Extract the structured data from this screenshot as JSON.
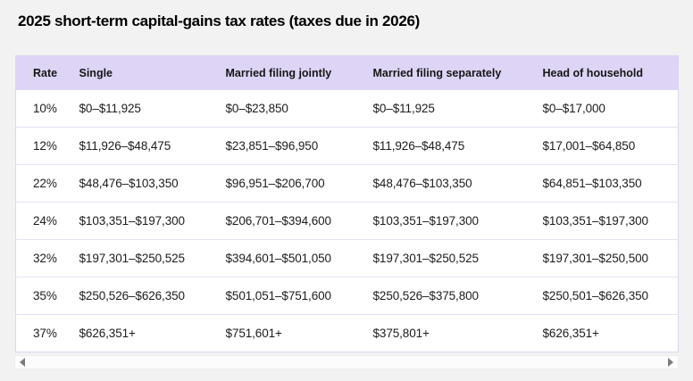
{
  "page": {
    "title": "2025 short-term capital-gains tax rates (taxes due in 2026)"
  },
  "table": {
    "columns": [
      "Rate",
      "Single",
      "Married filing jointly",
      "Married filing separately",
      "Head of household"
    ],
    "rows": [
      [
        "10%",
        "$0–$11,925",
        "$0–$23,850",
        "$0–$11,925",
        "$0–$17,000"
      ],
      [
        "12%",
        "$11,926–$48,475",
        "$23,851–$96,950",
        "$11,926–$48,475",
        "$17,001–$64,850"
      ],
      [
        "22%",
        "$48,476–$103,350",
        "$96,951–$206,700",
        "$48,476–$103,350",
        "$64,851–$103,350"
      ],
      [
        "24%",
        "$103,351–$197,300",
        "$206,701–$394,600",
        "$103,351–$197,300",
        "$103,351–$197,300"
      ],
      [
        "32%",
        "$197,301–$250,525",
        "$394,601–$501,050",
        "$197,301–$250,525",
        "$197,301–$250,500"
      ],
      [
        "35%",
        "$250,526–$626,350",
        "$501,051–$751,600",
        "$250,526–$375,800",
        "$250,501–$626,350"
      ],
      [
        "37%",
        "$626,351+",
        "$751,601+",
        "$375,801+",
        "$626,351+"
      ]
    ]
  },
  "scrollbar": {
    "left_icon": "triangle-left",
    "right_icon": "triangle-right"
  },
  "colors": {
    "page_background": "#f2f2f2",
    "header_background": "#ddd4f6",
    "row_background": "#ffffff",
    "row_separator": "#e7e0f7",
    "table_border": "#ddd3f4",
    "text": "#1c1c1c"
  }
}
